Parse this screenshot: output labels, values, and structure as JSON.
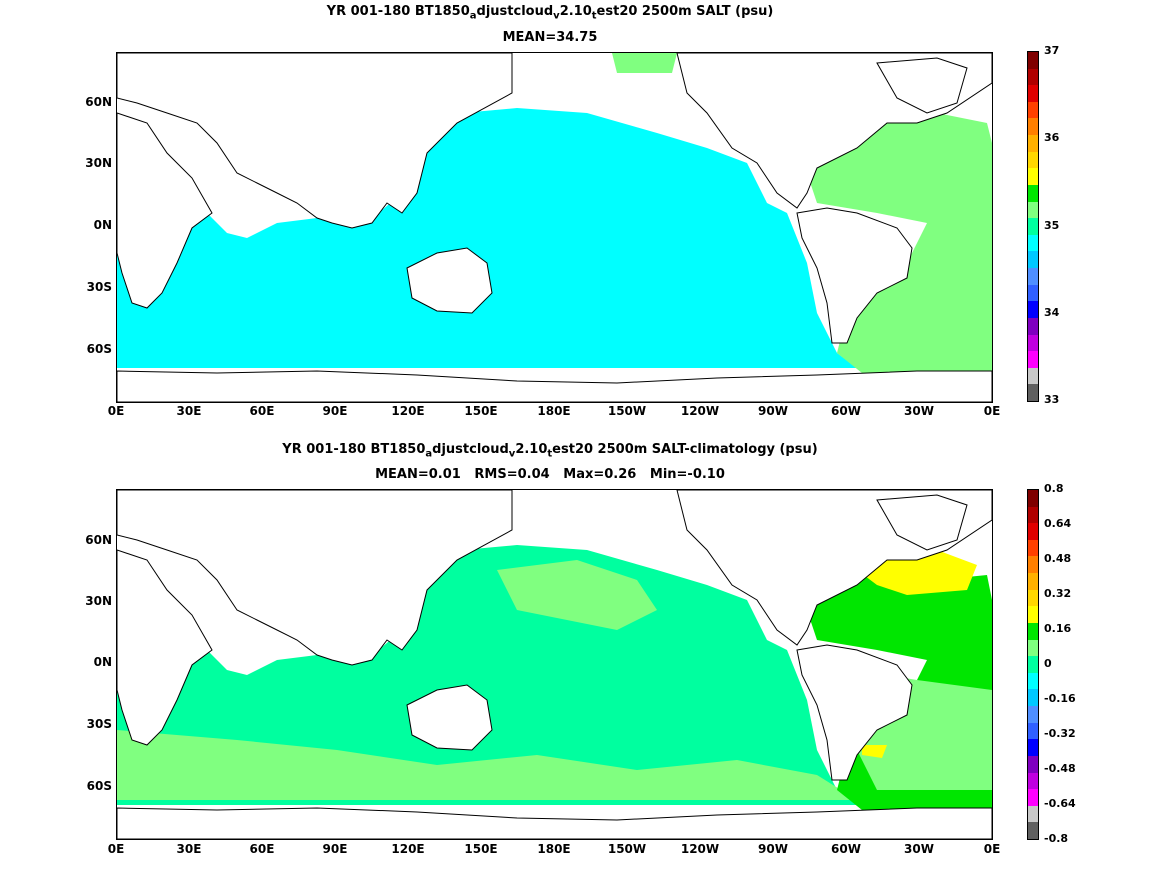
{
  "panels": [
    {
      "title_parts": [
        "YR 001-180 BT1850",
        "a",
        "djustcloud",
        "v",
        "2.10",
        "t",
        "est20 2500m SALT (psu)"
      ],
      "subtitle": "MEAN=34.75",
      "x_ticks": [
        "0E",
        "30E",
        "60E",
        "90E",
        "120E",
        "150E",
        "180E",
        "150W",
        "120W",
        "90W",
        "60W",
        "30W",
        "0E"
      ],
      "y_ticks": [
        "60N",
        "30N",
        "0N",
        "30S",
        "60S"
      ],
      "colorbar": {
        "labels": [
          "37",
          "36",
          "35",
          "34",
          "33"
        ],
        "colors": [
          "#7f0000",
          "#b00000",
          "#e00000",
          "#ff4000",
          "#ff7f00",
          "#ffb000",
          "#ffd700",
          "#ffff00",
          "#00e600",
          "#7fff7f",
          "#00ff9f",
          "#00ffff",
          "#00c8ff",
          "#4f8fff",
          "#3060ff",
          "#0000ff",
          "#7f00c0",
          "#c000e0",
          "#ff00ff",
          "#c8c8c8",
          "#606060"
        ]
      },
      "fill_colors": {
        "pacific_indian": "#00ffff",
        "atlantic": "#80ff80",
        "southern_atlantic": "#00ff9f"
      }
    },
    {
      "title_parts": [
        "YR 001-180 BT1850",
        "a",
        "djustcloud",
        "v",
        "2.10",
        "t",
        "est20 2500m SALT-climatology (psu)"
      ],
      "subtitle": "MEAN=0.01   RMS=0.04   Max=0.26   Min=-0.10",
      "x_ticks": [
        "0E",
        "30E",
        "60E",
        "90E",
        "120E",
        "150E",
        "180E",
        "150W",
        "120W",
        "90W",
        "60W",
        "30W",
        "0E"
      ],
      "y_ticks": [
        "60N",
        "30N",
        "0N",
        "30S",
        "60S"
      ],
      "colorbar": {
        "labels": [
          "0.8",
          "0.64",
          "0.48",
          "0.32",
          "0.16",
          "0",
          "-0.16",
          "-0.32",
          "-0.48",
          "-0.64",
          "-0.8"
        ],
        "colors": [
          "#7f0000",
          "#b00000",
          "#e00000",
          "#ff4000",
          "#ff7f00",
          "#ffb000",
          "#ffd700",
          "#ffff00",
          "#00e600",
          "#7fff7f",
          "#00ff9f",
          "#00ffff",
          "#00c8ff",
          "#4f8fff",
          "#3060ff",
          "#0000ff",
          "#7f00c0",
          "#c000e0",
          "#ff00ff",
          "#c8c8c8",
          "#606060"
        ]
      },
      "fill_colors": {
        "pacific_green": "#00ff9f",
        "light_green": "#80ff80",
        "subpolar_yellow": "#ffff00",
        "gulfstream_green": "#00e600"
      }
    }
  ]
}
